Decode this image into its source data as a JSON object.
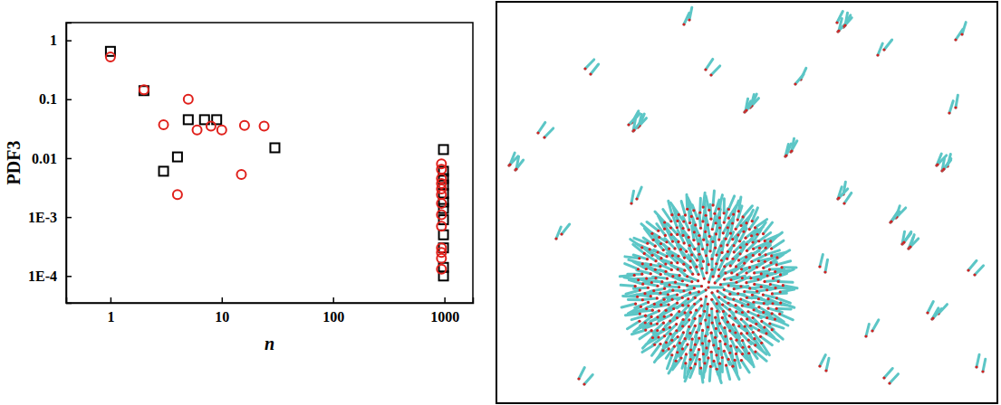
{
  "chart_data": {
    "type": "scatter",
    "x_label": "n",
    "y_label": "PDF3",
    "log": true,
    "grid": false,
    "xlim": [
      0.4,
      1800
    ],
    "ylim": [
      3.5e-05,
      2
    ],
    "xticks": [
      1,
      10,
      100,
      1000
    ],
    "yticks": [
      1,
      0.1,
      0.01,
      {
        "value": 0.001,
        "label": "1E-3"
      },
      {
        "value": 0.0001,
        "label": "1E-4"
      }
    ],
    "series": [
      {
        "color": "#000000",
        "marker": "square",
        "x": [
          1,
          2,
          3,
          4,
          5,
          7,
          9,
          30,
          980,
          980,
          980,
          980,
          980,
          980,
          980,
          980,
          980,
          980,
          980,
          980
        ],
        "values": [
          0.65,
          0.14,
          0.006,
          0.0105,
          0.045,
          0.045,
          0.045,
          0.015,
          0.014,
          0.006,
          0.0045,
          0.0035,
          0.0025,
          0.0018,
          0.0014,
          0.0009,
          0.0005,
          0.0003,
          0.00014,
          0.0001
        ]
      },
      {
        "color": "#e0201b",
        "marker": "circle",
        "x": [
          1,
          2,
          3,
          4,
          5,
          6,
          8,
          10,
          15,
          16,
          24,
          940,
          940,
          940,
          940,
          940,
          940,
          940,
          940,
          940,
          940,
          940,
          940,
          940
        ],
        "values": [
          0.52,
          0.145,
          0.037,
          0.0024,
          0.1,
          0.03,
          0.035,
          0.03,
          0.0053,
          0.036,
          0.035,
          0.008,
          0.0065,
          0.0045,
          0.0037,
          0.003,
          0.0024,
          0.0017,
          0.0011,
          0.0007,
          0.0003,
          0.00025,
          0.0002,
          0.00013
        ]
      }
    ]
  }
}
